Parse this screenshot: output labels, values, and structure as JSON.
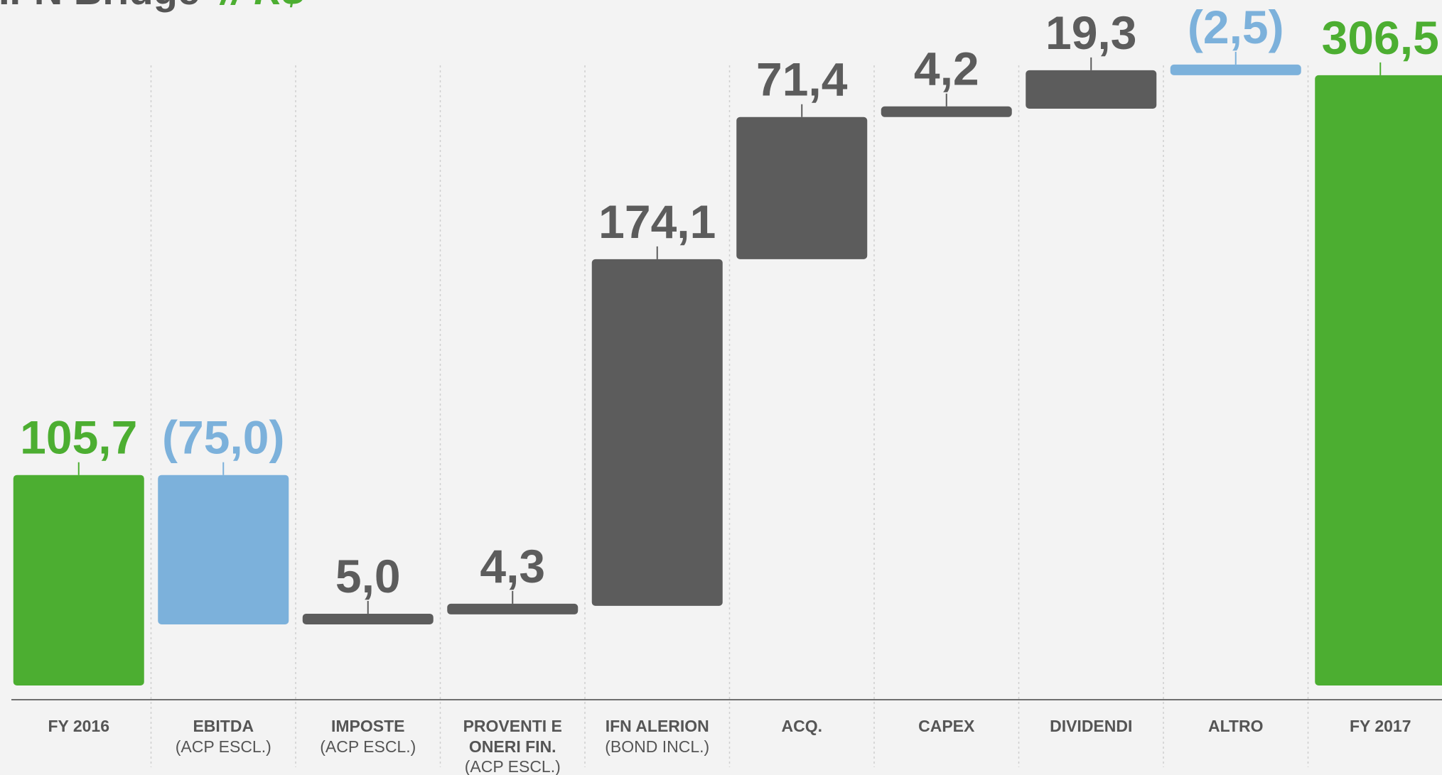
{
  "title": {
    "main": "IFN Bridge",
    "unit": "// K$"
  },
  "colors": {
    "total": "#4cae31",
    "decrease": "#7cb1db",
    "increase": "#5c5c5c",
    "axis": "#6e6e6e",
    "separator": "#cfcfcf"
  },
  "chart_data": {
    "type": "bar",
    "subtype": "waterfall",
    "categories": [
      {
        "label": "FY 2016",
        "sub": []
      },
      {
        "label": "EBITDA",
        "sub": [
          "(ACP ESCL.)"
        ]
      },
      {
        "label": "IMPOSTE",
        "sub": [
          "(ACP ESCL.)"
        ]
      },
      {
        "label": "PROVENTI E",
        "sub": [
          "ONERI FIN.",
          "(ACP ESCL.)"
        ]
      },
      {
        "label": "IFN ALERION",
        "sub": [
          "(BOND INCL.)"
        ]
      },
      {
        "label": "ACQ.",
        "sub": []
      },
      {
        "label": "CAPEX",
        "sub": []
      },
      {
        "label": "DIVIDENDI",
        "sub": []
      },
      {
        "label": "ALTRO",
        "sub": []
      },
      {
        "label": "FY 2017",
        "sub": []
      }
    ],
    "values": [
      105.7,
      -75.0,
      5.0,
      4.3,
      174.1,
      71.4,
      4.2,
      19.3,
      -2.5,
      306.5
    ],
    "value_labels": [
      "105,7",
      "(75,0)",
      "5,0",
      "4,3",
      "174,1",
      "71,4",
      "4,2",
      "19,3",
      "(2,5)",
      "306,5"
    ],
    "kinds": [
      "total",
      "decrease",
      "increase",
      "increase",
      "increase",
      "increase",
      "increase",
      "increase",
      "decrease",
      "total"
    ],
    "ylim": [
      0,
      320
    ],
    "grid": false,
    "legend": "none"
  }
}
